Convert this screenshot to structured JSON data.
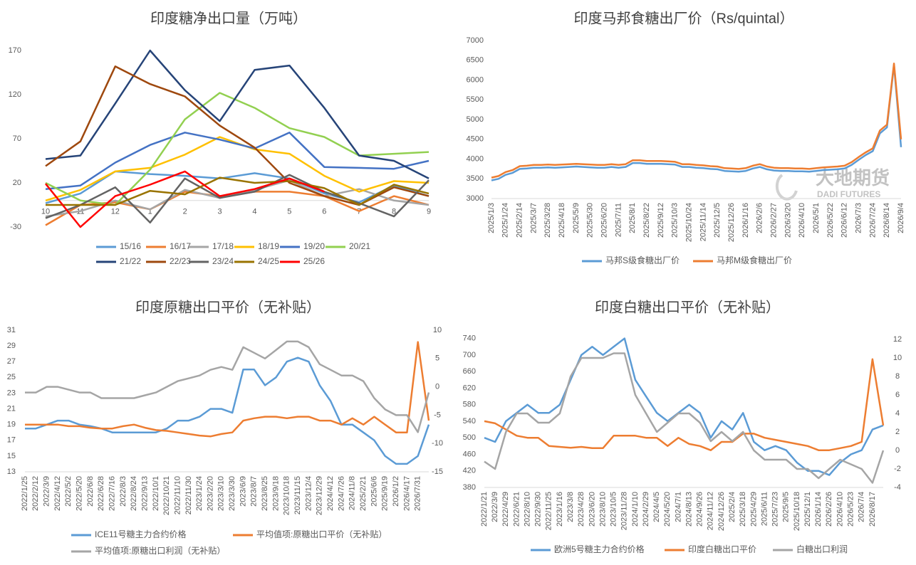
{
  "watermark": {
    "cn": "大地期货",
    "en": "DADI FUTURES"
  },
  "chart_data": [
    {
      "type": "line",
      "title": "印度糖净出口量（万吨）",
      "categories": [
        "10",
        "11",
        "12",
        "1",
        "2",
        "3",
        "4",
        "5",
        "6",
        "7",
        "8",
        "9"
      ],
      "ylim": [
        -30,
        170
      ],
      "yticks": [
        -30,
        20,
        70,
        120,
        170
      ],
      "grid": false,
      "series": [
        {
          "name": "15/16",
          "color": "#5b9bd5",
          "values": [
            -3,
            8,
            33,
            30,
            28,
            25,
            31,
            25,
            8,
            -2,
            17,
            5
          ]
        },
        {
          "name": "16/17",
          "color": "#ed7d31",
          "values": [
            -28,
            -5,
            -2,
            -10,
            10,
            5,
            10,
            10,
            5,
            -12,
            5,
            -5
          ]
        },
        {
          "name": "17/18",
          "color": "#a5a5a5",
          "values": [
            -18,
            -12,
            0,
            -10,
            12,
            3,
            12,
            23,
            5,
            13,
            0,
            -5
          ]
        },
        {
          "name": "18/19",
          "color": "#ffc000",
          "values": [
            0,
            12,
            33,
            37,
            52,
            72,
            58,
            53,
            28,
            10,
            22,
            20
          ]
        },
        {
          "name": "19/20",
          "color": "#4472c4",
          "values": [
            13,
            17,
            43,
            63,
            77,
            69,
            59,
            77,
            38,
            37,
            36,
            45
          ]
        },
        {
          "name": "20/21",
          "color": "#92d050",
          "values": [
            20,
            0,
            -5,
            35,
            92,
            122,
            105,
            82,
            72,
            51,
            53,
            55
          ]
        },
        {
          "name": "21/22",
          "color": "#264478",
          "values": [
            47,
            51,
            110,
            170,
            125,
            90,
            148,
            153,
            105,
            51,
            45,
            25
          ]
        },
        {
          "name": "22/23",
          "color": "#9e480e",
          "values": [
            39,
            67,
            152,
            132,
            118,
            85,
            60,
            20,
            5,
            -5,
            15,
            5
          ]
        },
        {
          "name": "23/24",
          "color": "#636363",
          "values": [
            -20,
            -5,
            15,
            -25,
            25,
            3,
            10,
            29,
            10,
            -3,
            -18,
            23
          ]
        },
        {
          "name": "24/25",
          "color": "#997300",
          "values": [
            -5,
            -5,
            -5,
            11,
            7,
            26,
            20,
            22,
            14,
            -5,
            18,
            8
          ]
        },
        {
          "name": "25/26",
          "color": "#ff0000",
          "values": [
            19,
            -30,
            5,
            18,
            33,
            5,
            13,
            25,
            10,
            null,
            null,
            null
          ]
        }
      ]
    },
    {
      "type": "line",
      "title": "印度马邦食糖出厂价（Rs/quintal）",
      "categories": [
        "2025/1/3",
        null,
        "2025/1/24",
        null,
        "2025/2/14",
        null,
        "2025/3/7",
        null,
        "2025/3/28",
        null,
        "2025/4/18",
        null,
        "2025/5/9",
        null,
        "2025/5/30",
        null,
        "2025/6/20",
        null,
        "2025/7/11",
        null,
        "2025/8/1",
        null,
        "2025/8/22",
        null,
        "2025/9/12",
        null,
        "2025/10/3",
        null,
        "2025/10/24",
        null,
        "2025/11/14",
        null,
        "2025/12/5",
        null,
        "2025/12/26",
        null,
        "2026/1/16",
        null,
        "2026/2/6",
        null,
        "2026/2/27",
        null,
        "2026/3/20",
        null,
        "2026/4/10",
        null,
        "2026/5/1",
        null,
        "2026/5/22",
        null,
        "2026/6/12",
        null,
        "2026/7/3",
        null,
        "2026/7/24",
        null,
        "2026/8/14",
        null,
        "2026/9/4"
      ],
      "ylim": [
        3000,
        7000
      ],
      "yticks": [
        3000,
        3500,
        4000,
        4500,
        5000,
        5500,
        6000,
        6500,
        7000
      ],
      "grid": false,
      "series": [
        {
          "name": "马邦S级食糖出厂价",
          "color": "#5b9bd5",
          "values": [
            3460,
            3500,
            3600,
            3650,
            3750,
            3760,
            3780,
            3780,
            3790,
            3780,
            3790,
            3800,
            3810,
            3800,
            3790,
            3780,
            3780,
            3800,
            3780,
            3800,
            3900,
            3900,
            3880,
            3880,
            3880,
            3870,
            3860,
            3800,
            3800,
            3780,
            3770,
            3750,
            3740,
            3700,
            3690,
            3680,
            3700,
            3760,
            3800,
            3740,
            3710,
            3700,
            3700,
            3690,
            3690,
            3680,
            3700,
            3720,
            3730,
            3740,
            3760,
            3850,
            3980,
            4100,
            4200,
            4650,
            4800,
            6380,
            4300
          ]
        },
        {
          "name": "马邦M级食糖出厂价",
          "color": "#ed7d31",
          "values": [
            3530,
            3570,
            3670,
            3720,
            3820,
            3830,
            3850,
            3850,
            3860,
            3850,
            3860,
            3870,
            3880,
            3870,
            3860,
            3850,
            3850,
            3870,
            3850,
            3870,
            3970,
            3970,
            3950,
            3950,
            3950,
            3940,
            3930,
            3870,
            3870,
            3850,
            3840,
            3820,
            3810,
            3770,
            3760,
            3750,
            3770,
            3830,
            3870,
            3810,
            3780,
            3770,
            3770,
            3760,
            3760,
            3750,
            3770,
            3790,
            3800,
            3810,
            3830,
            3920,
            4050,
            4170,
            4270,
            4720,
            4870,
            6420,
            4500
          ]
        }
      ]
    },
    {
      "type": "line",
      "title": "印度原糖出口平价（无补贴）",
      "categories": [
        "2022/1/25",
        "2022/2/12",
        "2022/3/9",
        "2022/4/12",
        "2022/5/2",
        "2022/5/20",
        "2022/6/8",
        "2022/6/28",
        "2022/7/16",
        "2022/8/3",
        "2022/8/24",
        "2022/9/13",
        "2022/10/1",
        "2022/10/21",
        "2022/11/10",
        "2022/11/30",
        "2023/1/24",
        "2023/2/20",
        "2023/3/10",
        "2023/3/30",
        "2023/6/9",
        "2023/8/7",
        "2023/8/25",
        "2023/9/18",
        "2023/10/18",
        "2023/11/15",
        "2023/12/4",
        "2023/12/29",
        "2024/4/12",
        "2024/7/26",
        "2024/11/8",
        "2025/2/21",
        "2025/6/6",
        "2025/9/19",
        "2026/1/2",
        "2026/4/17",
        "2026/7/31",
        null
      ],
      "ylim": [
        13,
        31
      ],
      "yticks": [
        13,
        15,
        17,
        19,
        21,
        23,
        25,
        27,
        29,
        31
      ],
      "y2lim": [
        -15,
        10
      ],
      "y2ticks": [
        -15,
        -10,
        -5,
        0,
        5,
        10
      ],
      "grid": false,
      "series": [
        {
          "name": "ICE11号糖主力合约价格",
          "color": "#5b9bd5",
          "values": [
            18.5,
            18.5,
            19,
            19.5,
            19.5,
            19,
            18.8,
            18.5,
            18,
            18,
            18,
            18,
            18,
            18.5,
            19.5,
            19.5,
            20,
            21,
            21,
            20.5,
            26,
            26,
            24,
            25,
            27,
            27.5,
            27,
            24,
            22,
            19,
            19,
            18,
            17,
            15,
            14,
            14,
            15,
            19
          ]
        },
        {
          "name": "平均值项:原糖出口平价（无补贴）",
          "color": "#ed7d31",
          "values": [
            19,
            19,
            19,
            19,
            18.8,
            18.8,
            18.6,
            18.5,
            18.5,
            18.8,
            19,
            18.6,
            18.3,
            18.2,
            18,
            17.8,
            17.6,
            17.5,
            17.8,
            18,
            19.5,
            19.8,
            20,
            20,
            19.8,
            20,
            20,
            19.5,
            19.5,
            19,
            19.8,
            19,
            20,
            19,
            18,
            18,
            29.5,
            19.5
          ]
        },
        {
          "name": "平均值项:原糖出口利润（无补贴）",
          "color": "#a5a5a5",
          "axis": "y2",
          "values": [
            -1,
            -1,
            0,
            0,
            -0.5,
            -1,
            -1,
            -2,
            -2,
            -2,
            -2,
            -1.5,
            -1,
            0,
            1,
            1.5,
            2,
            3,
            3.5,
            3,
            7,
            6,
            5,
            6.5,
            8,
            8,
            7,
            4,
            3,
            2,
            2,
            1,
            -2,
            -4,
            -5,
            -5,
            -8,
            -1
          ]
        }
      ]
    },
    {
      "type": "line",
      "title": "印度白糖出口平价（无补贴）",
      "categories": [
        "2022/1/21",
        "2022/3/9",
        "2022/4/29",
        "2022/6/21",
        "2022/8/10",
        "2022/9/30",
        "2022/11/25",
        "2023/1/16",
        "2023/3/8",
        "2023/4/28",
        "2023/6/20",
        "2023/8/10",
        "2023/10/5",
        "2023/11/28",
        "2024/1/10",
        "2024/2/29",
        "2024/4/5",
        "2024/5/20",
        "2024/7/1",
        "2024/8/13",
        "2024/9/26",
        "2024/11/12",
        "2024/12/26",
        "2025/2/4",
        "2025/3/18",
        "2025/4/29",
        "2025/6/11",
        "2025/7/23",
        "2025/9/5",
        "2025/10/18",
        "2025/12/1",
        "2026/1/14",
        "2026/2/26",
        "2026/4/10",
        "2026/5/23",
        "2026/7/4",
        "2026/8/17",
        null
      ],
      "ylim": [
        380,
        760
      ],
      "yticks": [
        380,
        420,
        460,
        500,
        540,
        580,
        620,
        660,
        700,
        740
      ],
      "y2lim": [
        -4,
        13
      ],
      "y2ticks": [
        -4,
        -2,
        0,
        2,
        4,
        6,
        8,
        10,
        12
      ],
      "grid": false,
      "series": [
        {
          "name": "欧洲5号糖主力合约价格",
          "color": "#5b9bd5",
          "values": [
            500,
            490,
            540,
            560,
            580,
            560,
            560,
            580,
            640,
            700,
            720,
            700,
            720,
            740,
            640,
            600,
            560,
            540,
            560,
            580,
            560,
            500,
            540,
            520,
            560,
            490,
            470,
            480,
            470,
            440,
            420,
            420,
            410,
            440,
            460,
            470,
            520,
            530
          ]
        },
        {
          "name": "印度白糖出口平价",
          "color": "#ed7d31",
          "values": [
            540,
            535,
            520,
            505,
            500,
            500,
            480,
            478,
            476,
            478,
            475,
            475,
            505,
            505,
            505,
            500,
            500,
            480,
            500,
            485,
            480,
            470,
            490,
            490,
            510,
            510,
            500,
            495,
            490,
            485,
            480,
            470,
            470,
            475,
            480,
            490,
            690,
            530
          ]
        },
        {
          "name": "白糖出口利润",
          "color": "#a5a5a5",
          "axis": "y2",
          "values": [
            -1.2,
            -2,
            2,
            4,
            4,
            3,
            3,
            4,
            8,
            10,
            10,
            10,
            10.5,
            10.5,
            6,
            4,
            2,
            3,
            4,
            4,
            3,
            1,
            2,
            1,
            2,
            0,
            -1,
            -1,
            -1,
            -2,
            -2,
            -3,
            -2,
            -1,
            -1.5,
            -2,
            -3.5,
            0
          ]
        }
      ]
    }
  ]
}
